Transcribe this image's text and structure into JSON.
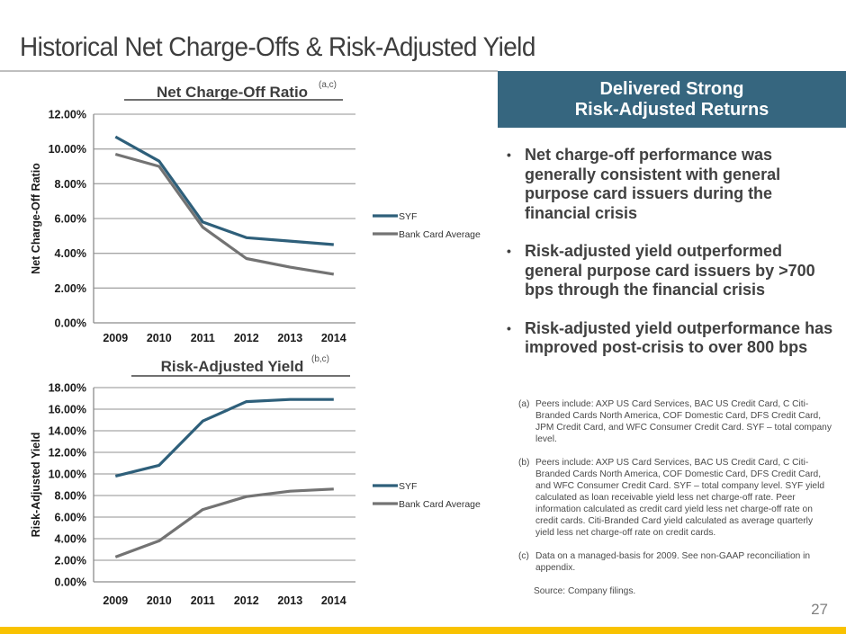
{
  "page": {
    "title": "Historical Net Charge-Offs & Risk-Adjusted Yield",
    "page_number": "27"
  },
  "callout": {
    "line1": "Delivered Strong",
    "line2": "Risk-Adjusted Returns"
  },
  "bullets": [
    "Net charge-off performance was generally consistent with general purpose card issuers during the financial crisis",
    "Risk-adjusted yield outperformed general purpose card issuers by >700 bps through the financial crisis",
    "Risk-adjusted yield outperformance has improved post-crisis to over 800 bps"
  ],
  "footnotes": [
    {
      "label": "(a)",
      "text": "Peers include:  AXP US Card Services, BAC US Credit Card, C Citi-Branded Cards North America, COF Domestic Card, DFS Credit Card, JPM Credit Card, and WFC Consumer Credit Card.  SYF – total company level."
    },
    {
      "label": "(b)",
      "text": "Peers include:  AXP US Card Services, BAC US Credit Card, C Citi-Branded Cards North America, COF Domestic Card, DFS Credit Card, and WFC Consumer Credit Card.  SYF – total company level. SYF yield calculated as loan receivable yield less net charge-off rate. Peer information calculated as credit card yield less net charge-off rate on credit cards.  Citi-Branded Card yield calculated as average quarterly yield less net charge-off rate on credit cards."
    },
    {
      "label": "(c)",
      "text": "Data on a managed-basis for 2009. See non-GAAP reconciliation in appendix."
    }
  ],
  "source": "Source:  Company filings.",
  "colors": {
    "syf": "#2e5f7a",
    "bank": "#737373",
    "accent": "#36667f",
    "footer": "#f9c200"
  },
  "chart_data": [
    {
      "type": "line",
      "title": "Net Charge-Off Ratio",
      "title_superscript": "(a,c)",
      "xlabel": "",
      "ylabel": "Net Charge-Off Ratio",
      "categories": [
        "2009",
        "2010",
        "2011",
        "2012",
        "2013",
        "2014"
      ],
      "ylim": [
        0,
        12
      ],
      "yticks": [
        "0.00%",
        "2.00%",
        "4.00%",
        "6.00%",
        "8.00%",
        "10.00%",
        "12.00%"
      ],
      "grid": true,
      "legend": "right",
      "series": [
        {
          "name": "SYF",
          "values": [
            10.7,
            9.3,
            5.8,
            4.9,
            4.7,
            4.5
          ]
        },
        {
          "name": "Bank Card Average",
          "values": [
            9.7,
            9.0,
            5.5,
            3.7,
            3.2,
            2.8
          ]
        }
      ]
    },
    {
      "type": "line",
      "title": "Risk-Adjusted Yield",
      "title_superscript": "(b,c)",
      "xlabel": "",
      "ylabel": "Risk-Adjusted Yield",
      "categories": [
        "2009",
        "2010",
        "2011",
        "2012",
        "2013",
        "2014"
      ],
      "ylim": [
        0,
        18
      ],
      "yticks": [
        "0.00%",
        "2.00%",
        "4.00%",
        "6.00%",
        "8.00%",
        "10.00%",
        "12.00%",
        "14.00%",
        "16.00%",
        "18.00%"
      ],
      "grid": true,
      "legend": "right",
      "series": [
        {
          "name": "SYF",
          "values": [
            9.8,
            10.8,
            14.9,
            16.7,
            16.9,
            16.9
          ]
        },
        {
          "name": "Bank Card Average",
          "values": [
            2.3,
            3.8,
            6.7,
            7.9,
            8.4,
            8.6
          ]
        }
      ]
    }
  ]
}
